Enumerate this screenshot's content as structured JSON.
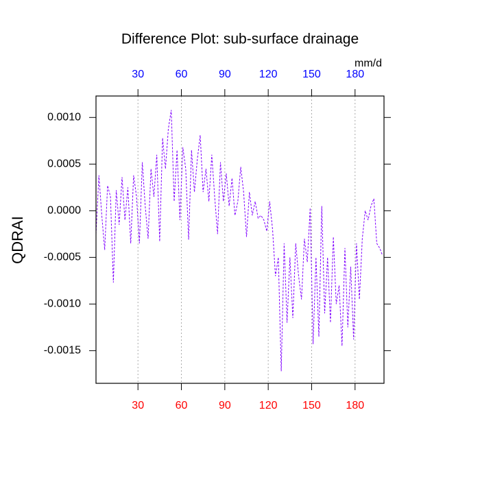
{
  "chart_data": {
    "type": "line",
    "title": "Difference Plot: sub-surface drainage",
    "ylabel": "QDRAI",
    "top_axis_label": "mm/d",
    "x": [
      1,
      3,
      5,
      7,
      9,
      11,
      13,
      15,
      17,
      19,
      21,
      23,
      25,
      27,
      29,
      31,
      33,
      35,
      37,
      39,
      41,
      43,
      45,
      47,
      49,
      51,
      53,
      55,
      57,
      59,
      61,
      63,
      65,
      67,
      69,
      71,
      73,
      75,
      77,
      79,
      81,
      83,
      85,
      87,
      89,
      91,
      93,
      95,
      97,
      99,
      101,
      103,
      105,
      107,
      109,
      111,
      113,
      115,
      117,
      119,
      121,
      123,
      125,
      127,
      129,
      131,
      133,
      135,
      137,
      139,
      141,
      143,
      145,
      147,
      149,
      151,
      153,
      155,
      157,
      159,
      161,
      163,
      165,
      167,
      169,
      171,
      173,
      175,
      177,
      179,
      181,
      183,
      185,
      187,
      189,
      191,
      193,
      195,
      197,
      199
    ],
    "series": [
      {
        "color": "#8000ff",
        "line_style": "dashed",
        "values": [
          -0.00025,
          0.00038,
          -5e-05,
          -0.00042,
          0.00027,
          0.00015,
          -0.00077,
          0.00022,
          -0.00015,
          0.00036,
          -0.0001,
          0.00025,
          -0.00035,
          0.00038,
          0.00015,
          -0.00035,
          0.00052,
          5e-05,
          -0.0003,
          0.00045,
          0.00015,
          0.0006,
          -0.00033,
          0.00078,
          0.00045,
          0.00088,
          0.00108,
          0.0001,
          0.00065,
          -0.0001,
          0.00068,
          0.00045,
          -0.00031,
          0.00065,
          0.0002,
          0.00055,
          0.00081,
          0.0002,
          0.00045,
          0.0001,
          0.0006,
          0.00015,
          -0.00025,
          0.00052,
          0.0001,
          0.0004,
          5e-05,
          0.00035,
          -5e-05,
          0.0001,
          0.00047,
          0.0002,
          -0.00028,
          0.0002,
          -5e-05,
          0.0001,
          -8e-05,
          -5e-05,
          -0.0001,
          -0.00022,
          0.0001,
          -0.0002,
          -0.0007,
          -0.0005,
          -0.00172,
          -0.00035,
          -0.0012,
          -0.0005,
          -0.00115,
          -0.00035,
          -0.0007,
          -0.00095,
          -0.0003,
          -0.00055,
          3e-05,
          -0.00143,
          -0.0005,
          -0.00135,
          5e-05,
          -0.0011,
          -0.0005,
          -0.0012,
          -0.00028,
          -0.001,
          -0.0008,
          -0.00145,
          -0.0004,
          -0.00125,
          -0.0006,
          -0.00138,
          -0.00035,
          -0.00095,
          -0.0003,
          0.0,
          -0.0001,
          5e-05,
          0.00013,
          -0.00035,
          -0.0004,
          -0.00048
        ]
      }
    ],
    "xlim": [
      1,
      200
    ],
    "xticks": [
      30,
      60,
      90,
      120,
      150,
      180
    ],
    "bottom_tick_color": "red",
    "top_tick_color": "blue",
    "ylim": [
      -0.00185,
      0.00123
    ],
    "yticks": [
      {
        "value": -0.0015,
        "label": "-0.0015"
      },
      {
        "value": -0.001,
        "label": "-0.0010"
      },
      {
        "value": -0.0005,
        "label": "-0.0005"
      },
      {
        "value": 0,
        "label": "0.0000"
      },
      {
        "value": 0.0005,
        "label": "0.0005"
      },
      {
        "value": 0.001,
        "label": "0.0010"
      }
    ],
    "grid": true
  }
}
